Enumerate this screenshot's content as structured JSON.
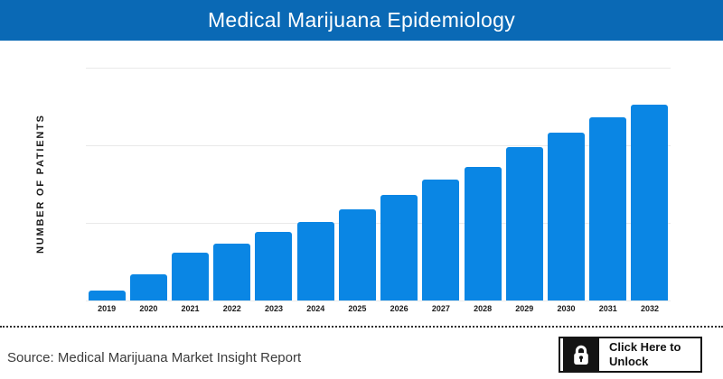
{
  "header": {
    "title": "Medical Marijuana Epidemiology",
    "bg_color": "#0a69b5",
    "text_color": "#ffffff"
  },
  "chart": {
    "y_axis_label": "NUMBER OF PATIENTS",
    "bar_color": "#0a86e4",
    "gridline_color": "#e9e9e9"
  },
  "chart_data": {
    "type": "bar",
    "title": "Medical Marijuana Epidemiology",
    "categories": [
      "2019",
      "2020",
      "2021",
      "2022",
      "2023",
      "2024",
      "2025",
      "2026",
      "2027",
      "2028",
      "2029",
      "2030",
      "2031",
      "2032"
    ],
    "values": [
      5.3,
      13.2,
      24.3,
      28.9,
      35.2,
      40.1,
      46.5,
      54.0,
      62.0,
      68.5,
      78.2,
      85.9,
      93.8,
      100
    ],
    "values_note": "relative units estimated from bar heights; y-axis shows no numeric tick labels",
    "xlabel": "",
    "ylabel": "NUMBER OF PATIENTS",
    "ylim": [
      0,
      119
    ],
    "grid": "horizontal",
    "legend": false
  },
  "footer": {
    "source": "Source: Medical Marijuana Market Insight Report",
    "unlock_button": {
      "label_line1": "Click Here to",
      "label_line2": "Unlock",
      "icon": "lock-icon",
      "bg_color": "#141414"
    }
  }
}
